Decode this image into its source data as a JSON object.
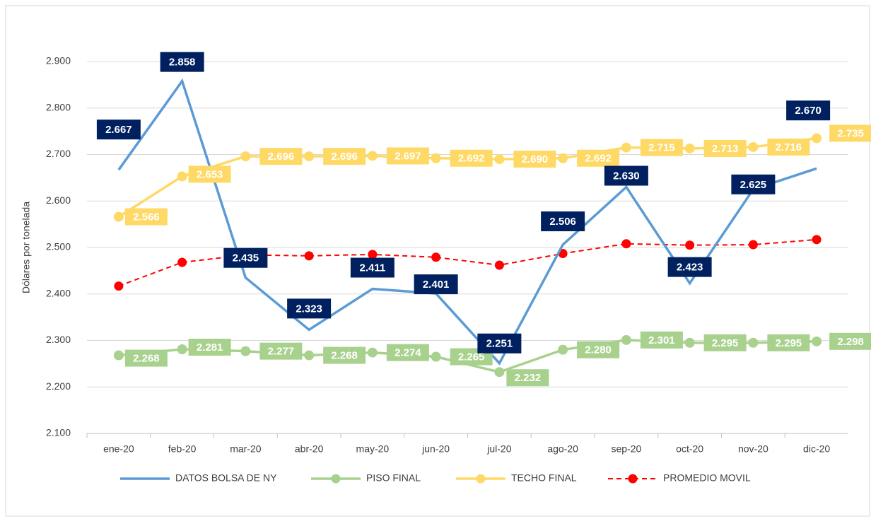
{
  "chart_data": {
    "type": "line",
    "y_label": "Dólares por tonelada",
    "categories": [
      "ene-20",
      "feb-20",
      "mar-20",
      "abr-20",
      "may-20",
      "jun-20",
      "jul-20",
      "ago-20",
      "sep-20",
      "oct-20",
      "nov-20",
      "dic-20"
    ],
    "ylim": [
      2100,
      2900
    ],
    "yticks": [
      {
        "value": 2100,
        "label": "2.100"
      },
      {
        "value": 2200,
        "label": "2.200"
      },
      {
        "value": 2300,
        "label": "2.300"
      },
      {
        "value": 2400,
        "label": "2.400"
      },
      {
        "value": 2500,
        "label": "2.500"
      },
      {
        "value": 2600,
        "label": "2.600"
      },
      {
        "value": 2700,
        "label": "2.700"
      },
      {
        "value": 2800,
        "label": "2.800"
      },
      {
        "value": 2900,
        "label": "2.900"
      }
    ],
    "grid": true,
    "legend": "bottom",
    "series": [
      {
        "name": "DATOS BOLSA DE NY",
        "color": "#5b9bd5",
        "values": [
          2667,
          2858,
          2435,
          2323,
          2411,
          2401,
          2251,
          2506,
          2630,
          2423,
          2625,
          2670
        ],
        "value_labels": [
          "2.667",
          "2.858",
          "2.435",
          "2.323",
          "2.411",
          "2.401",
          "2.251",
          "2.506",
          "2.630",
          "2.423",
          "2.625",
          "2.670"
        ]
      },
      {
        "name": "PISO FINAL",
        "color": "#a9d18e",
        "values": [
          2268,
          2281,
          2277,
          2268,
          2274,
          2265,
          2232,
          2280,
          2301,
          2295,
          2295,
          2298
        ],
        "value_labels": [
          "2.268",
          "2.281",
          "2.277",
          "2.268",
          "2.274",
          "2.265",
          "2.232",
          "2.280",
          "2.301",
          "2.295",
          "2.295",
          "2.298"
        ]
      },
      {
        "name": "TECHO FINAL",
        "color": "#ffd966",
        "values": [
          2566,
          2653,
          2696,
          2696,
          2697,
          2692,
          2690,
          2692,
          2715,
          2713,
          2716,
          2735
        ],
        "value_labels": [
          "2.566",
          "2.653",
          "2.696",
          "2.696",
          "2.697",
          "2.692",
          "2.690",
          "2.692",
          "2.715",
          "2.713",
          "2.716",
          "2.735"
        ]
      },
      {
        "name": "PROMEDIO MOVIL",
        "color": "#ff0000",
        "values": [
          2417,
          2468,
          2484,
          2482,
          2485,
          2479,
          2462,
          2487,
          2508,
          2505,
          2506,
          2517
        ]
      }
    ]
  }
}
